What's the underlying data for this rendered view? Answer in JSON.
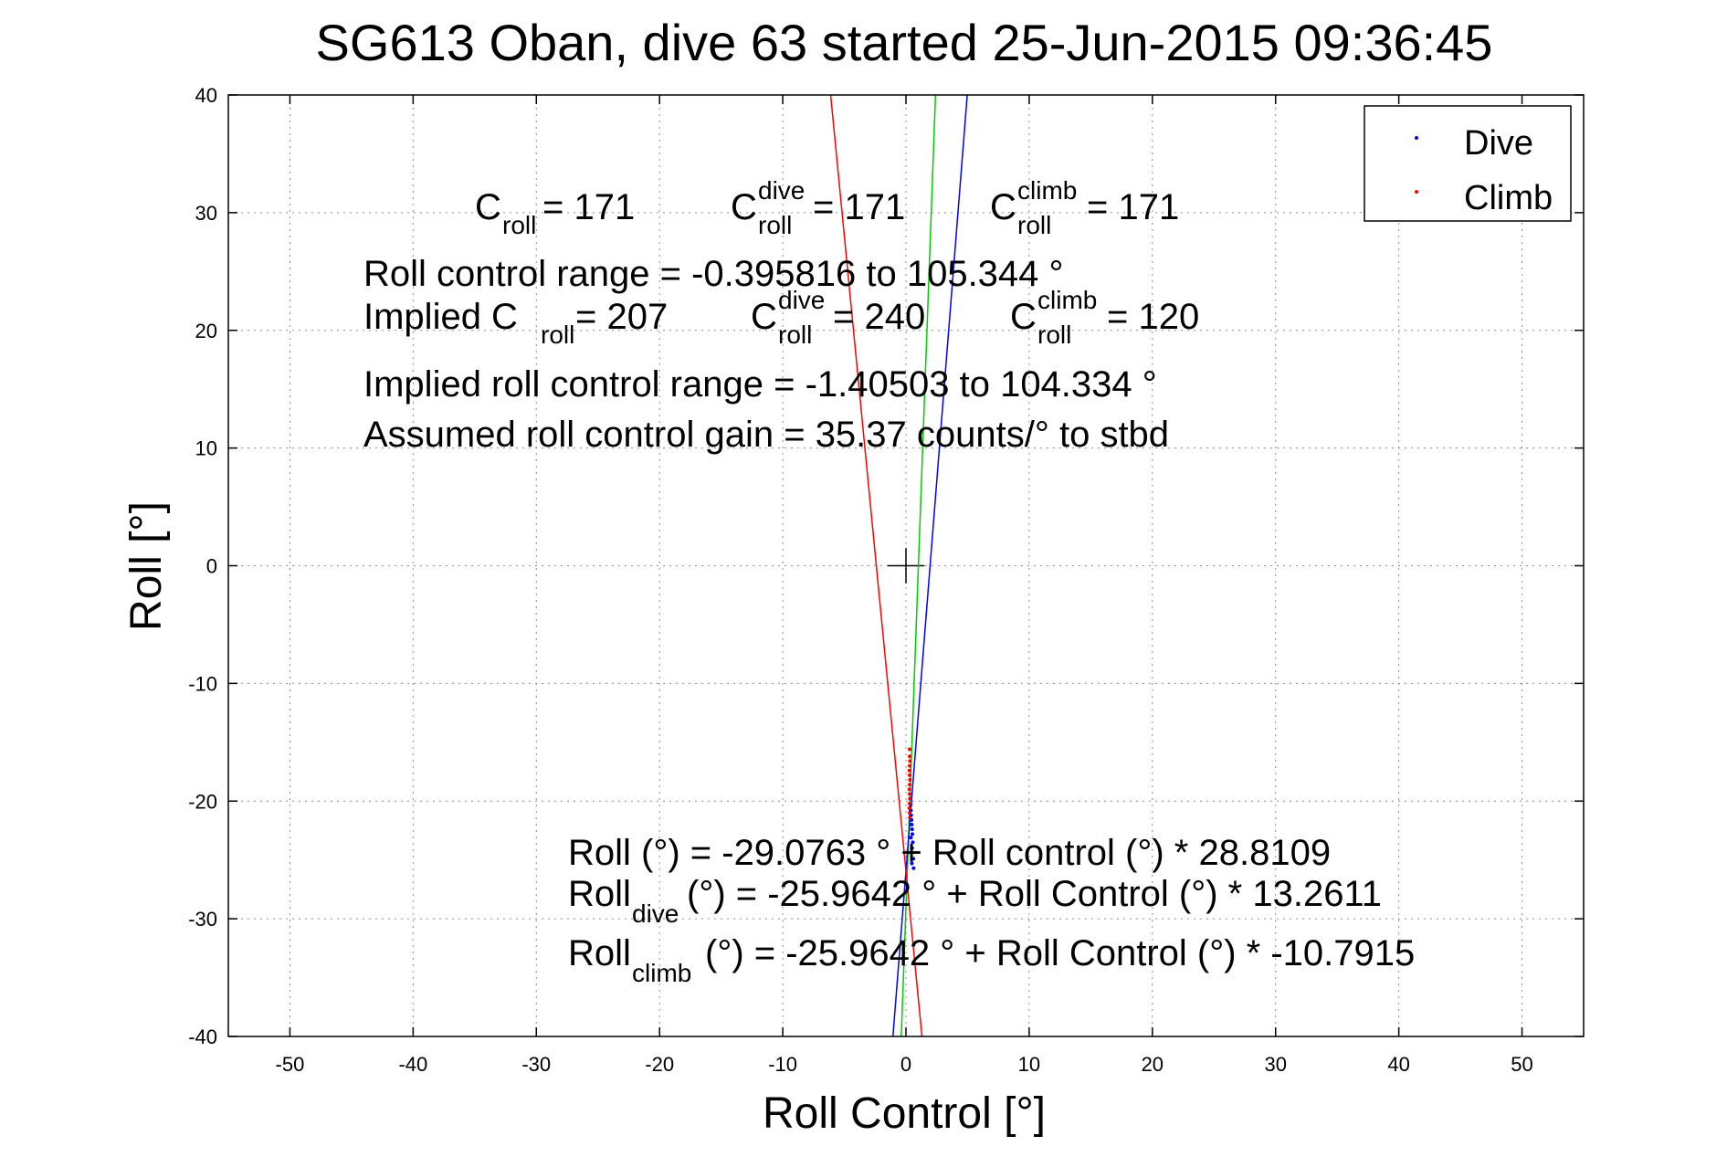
{
  "chart_data": {
    "type": "scatter",
    "title": "SG613 Oban, dive 63 started 25-Jun-2015 09:36:45",
    "xlabel": "Roll Control [°]",
    "ylabel": "Roll [°]",
    "xlim": [
      -55,
      55
    ],
    "ylim": [
      -40,
      40
    ],
    "grid": true,
    "legend_placement": "top-right",
    "xticks": [
      -50,
      -40,
      -30,
      -20,
      -10,
      0,
      10,
      20,
      30,
      40,
      50
    ],
    "yticks": [
      40,
      30,
      20,
      10,
      0,
      -10,
      -20,
      -30,
      -40
    ],
    "xtick_labels": [
      "-50",
      "-40",
      "-30",
      "-20",
      "-10",
      "0",
      "10",
      "20",
      "30",
      "40",
      "50"
    ],
    "ytick_labels": [
      "40",
      "30",
      "20",
      "10",
      "0",
      "-10",
      "-20",
      "-30",
      "-40"
    ],
    "series": [
      {
        "name": "Dive",
        "color": "#0000ff",
        "points": [
          [
            0.35,
            -19.8
          ],
          [
            0.38,
            -20.3
          ],
          [
            0.4,
            -20.8
          ],
          [
            0.42,
            -21.2
          ],
          [
            0.45,
            -21.6
          ],
          [
            0.47,
            -22.0
          ],
          [
            0.5,
            -22.4
          ],
          [
            0.52,
            -22.8
          ],
          [
            0.4,
            -23.1
          ],
          [
            0.55,
            -23.5
          ],
          [
            0.5,
            -24.0
          ],
          [
            0.45,
            -24.4
          ],
          [
            0.6,
            -24.9
          ],
          [
            0.48,
            -25.3
          ],
          [
            0.62,
            -25.7
          ]
        ]
      },
      {
        "name": "Climb",
        "color": "#ff0000",
        "points": [
          [
            0.3,
            -15.6
          ],
          [
            0.3,
            -16.2
          ],
          [
            0.32,
            -16.6
          ],
          [
            0.3,
            -17.0
          ],
          [
            0.28,
            -17.4
          ],
          [
            0.3,
            -17.8
          ],
          [
            0.32,
            -18.2
          ],
          [
            0.3,
            -18.6
          ],
          [
            0.28,
            -19.0
          ],
          [
            0.3,
            -19.4
          ],
          [
            0.32,
            -19.8
          ],
          [
            0.3,
            -20.2
          ],
          [
            0.28,
            -20.6
          ],
          [
            0.3,
            -21.0
          ],
          [
            0.32,
            -21.4
          ]
        ]
      }
    ],
    "fit_lines": [
      {
        "id": "fit-all",
        "color": "#00cc00",
        "intercept": -29.0763,
        "slope": 28.8109
      },
      {
        "id": "fit-dive",
        "color": "#0000ff",
        "intercept": -25.9642,
        "slope": 13.2611
      },
      {
        "id": "fit-climb",
        "color": "#ff0000",
        "intercept": -25.9642,
        "slope": -10.7915
      }
    ],
    "legend": [
      {
        "label": "Dive",
        "color": "#0000ff"
      },
      {
        "label": "Climb",
        "color": "#ff0000"
      }
    ],
    "annotations": {
      "c_roll": {
        "base": "C",
        "sub": "roll",
        "value": " =  171"
      },
      "c_roll_dive": {
        "base": "C",
        "sup": "dive",
        "sub": "roll",
        "value": " =  171"
      },
      "c_roll_climb": {
        "base": "C",
        "sup": "climb",
        "sub": "roll",
        "value": " =  171"
      },
      "roll_control_range": "Roll control range = -0.395816 to 105.344 °",
      "implied_c_roll": {
        "prefix": "Implied C",
        "sub": "roll",
        "value": " =  207"
      },
      "implied_c_roll_dive": {
        "base": "C",
        "sup": "dive",
        "sub": "roll",
        "value": " =  240"
      },
      "implied_c_roll_climb": {
        "base": "C",
        "sup": "climb",
        "sub": "roll",
        "value": " =  120"
      },
      "implied_range": "Implied roll control range = -1.40503 to 104.334 °",
      "gain": "Assumed roll control gain = 35.37 counts/° to stbd",
      "fit_eq": "Roll (°) = -29.0763 ° + Roll control (°) * 28.8109",
      "fit_dive_eq": {
        "base": "Roll",
        "sub": "dive",
        "rest": " (°) = -25.9642 ° + Roll Control (°) * 13.2611"
      },
      "fit_climb_eq": {
        "base": "Roll",
        "sub": "climb",
        "rest": " (°) = -25.9642 ° + Roll Control (°) * -10.7915"
      }
    }
  }
}
